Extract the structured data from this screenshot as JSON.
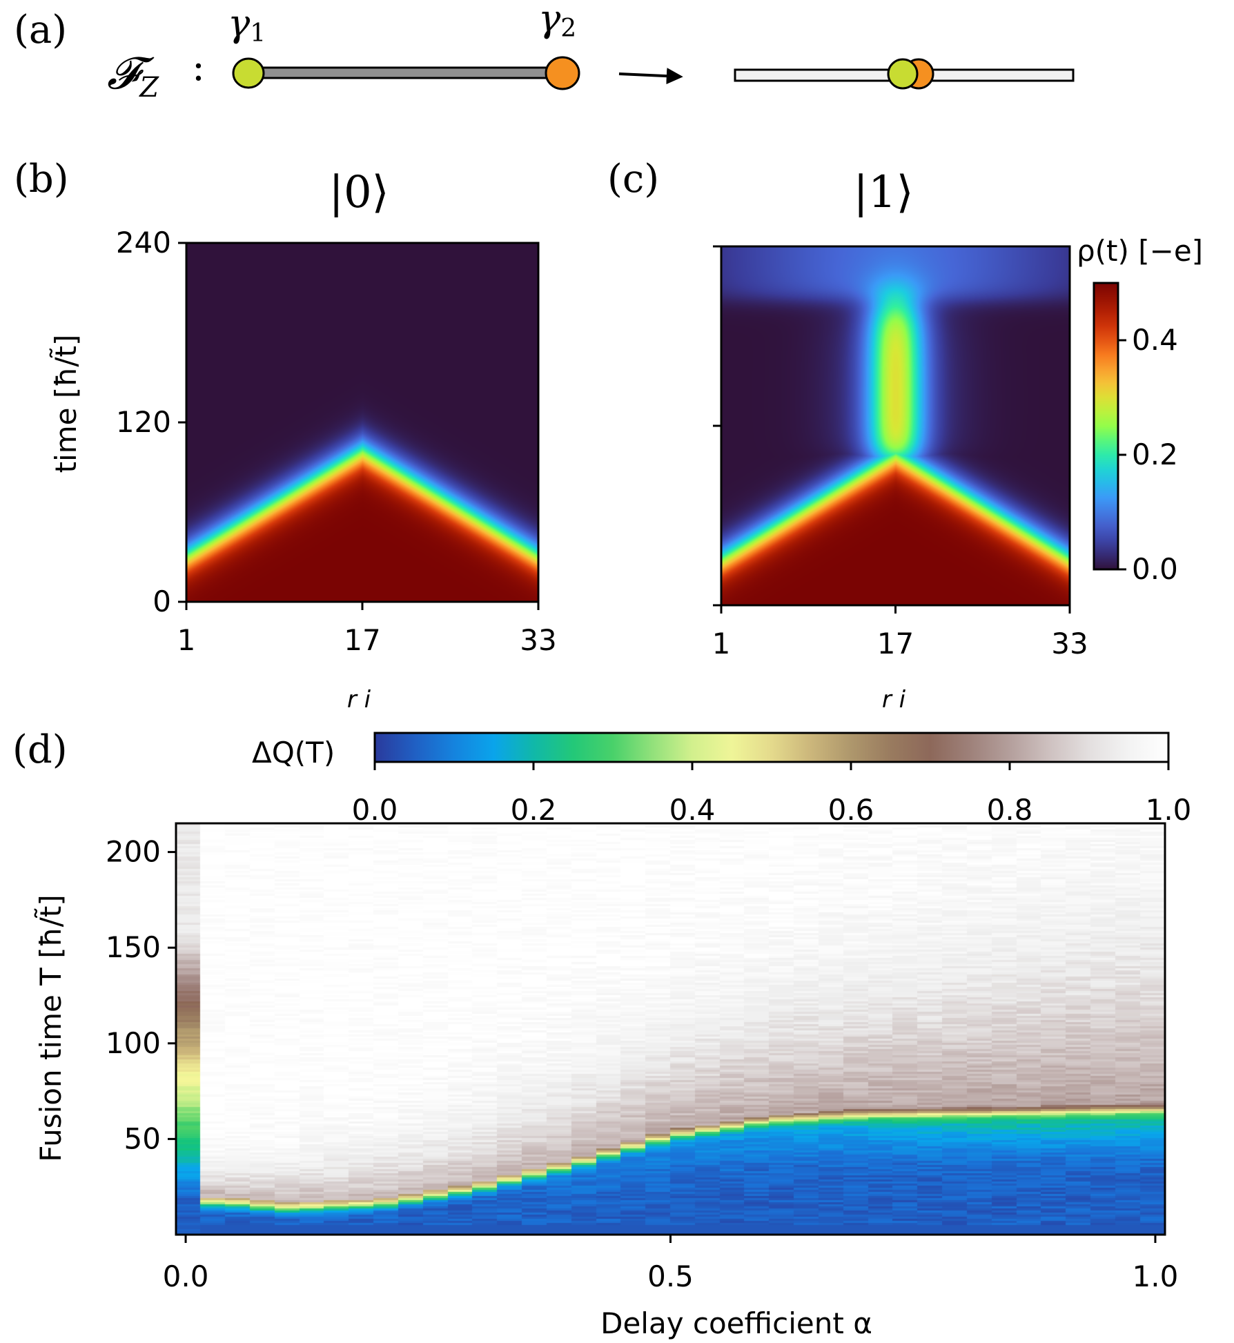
{
  "panel_a": {
    "label": "(a)",
    "operator": "𝓕",
    "operator_sub": "Z",
    "colon": ":",
    "gamma1": "γ",
    "gamma1_sub": "1",
    "gamma2": "γ",
    "gamma2_sub": "2",
    "colors": {
      "left_node": "#c8dc32",
      "right_node": "#f59020",
      "wire": "#909090",
      "wire_after": "#f2f2f2"
    }
  },
  "chart_data": [
    {
      "id": "b",
      "type": "heatmap",
      "panel_label": "(b)",
      "title": "|0⟩",
      "xlabel": "r i",
      "ylabel": "time [ħ/t̃]",
      "x_ticks": [
        "1",
        "17",
        "33"
      ],
      "x_tick_values": [
        1,
        17,
        33
      ],
      "y_ticks": [
        "0",
        "120",
        "240"
      ],
      "y_tick_values": [
        0,
        120,
        240
      ],
      "xlim": [
        1,
        33
      ],
      "ylim": [
        0,
        240
      ],
      "description_of_field": "density near 0.5 below a V-shaped front (t≈100 at site 17, t≈30 at edges), ~0 above"
    },
    {
      "id": "c",
      "type": "heatmap",
      "panel_label": "(c)",
      "title": "|1⟩",
      "xlabel": "r i",
      "x_ticks": [
        "1",
        "17",
        "33"
      ],
      "x_tick_values": [
        1,
        17,
        33
      ],
      "y_tick_values": [
        0,
        120,
        240
      ],
      "xlim": [
        1,
        33
      ],
      "ylim": [
        0,
        240
      ],
      "colorbar": {
        "label": "ρ(t) [−e]",
        "ticks": [
          "0.0",
          "0.2",
          "0.4"
        ],
        "tick_values": [
          0.0,
          0.2,
          0.4
        ],
        "range": [
          0,
          0.5
        ]
      }
    },
    {
      "id": "d",
      "type": "heatmap",
      "panel_label": "(d)",
      "xlabel": "Delay coefficient α",
      "ylabel": "Fusion time T [ħ/t̃]",
      "x_ticks": [
        "0.0",
        "0.5",
        "1.0"
      ],
      "x_tick_values": [
        0.0,
        0.5,
        1.0
      ],
      "y_ticks": [
        "50",
        "100",
        "150",
        "200"
      ],
      "y_tick_values": [
        50,
        100,
        150,
        200
      ],
      "xlim": [
        -0.01,
        1.01
      ],
      "ylim": [
        0,
        215
      ],
      "colorbar": {
        "label": "ΔQ(T)",
        "ticks": [
          "0.0",
          "0.2",
          "0.4",
          "0.6",
          "0.8",
          "1.0"
        ],
        "tick_values": [
          0.0,
          0.2,
          0.4,
          0.6,
          0.8,
          1.0
        ],
        "range": [
          0,
          1
        ]
      },
      "ridge_T_vs_alpha": {
        "alpha": [
          0.04,
          0.1,
          0.2,
          0.3,
          0.4,
          0.5,
          0.6,
          0.7,
          0.8,
          0.9,
          1.0
        ],
        "T": [
          20,
          17,
          19,
          27,
          40,
          55,
          63,
          66,
          67,
          68,
          69
        ]
      }
    }
  ],
  "colormaps": {
    "turbo_like": [
      "#30123b",
      "#3a3c9a",
      "#4666d6",
      "#3b9af7",
      "#1ccde1",
      "#32f19c",
      "#93fd4a",
      "#d6e935",
      "#fbb838",
      "#f77a1e",
      "#d83a0b",
      "#a81a02",
      "#7a0403"
    ],
    "gist_earth_like": [
      "#2a3a9c",
      "#1a73d8",
      "#09a7ec",
      "#14c47d",
      "#4fd268",
      "#c9ee8a",
      "#f6f69a",
      "#d2bd7e",
      "#a58d68",
      "#8a6455",
      "#a48a86",
      "#ccbfbe",
      "#ededed",
      "#ffffff"
    ]
  }
}
